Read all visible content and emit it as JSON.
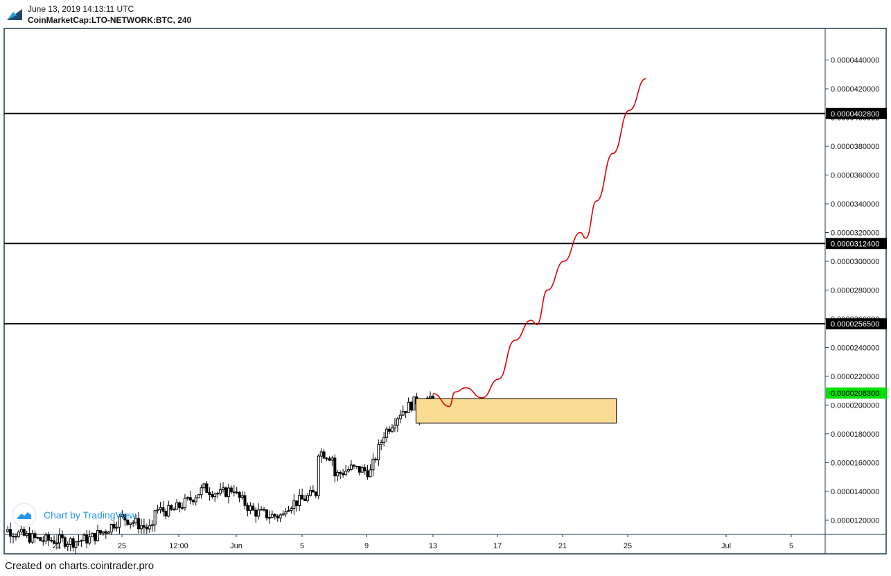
{
  "header": {
    "timestamp": "June 13, 2019 14:13:11 UTC",
    "symbol": "CoinMarketCap:LTO-NETWORK:BTC, 240"
  },
  "watermark": {
    "text": "Chart by TradingView"
  },
  "footer": {
    "text": "Created on charts.cointrader.pro"
  },
  "colors": {
    "frame": "#1a3a4a",
    "candle": "#000000",
    "projection": "#e00000",
    "zone_fill": "#f9dc92",
    "current_price": "#00e000",
    "level_label_bg": "#000000"
  },
  "chart_data": {
    "type": "candlestick",
    "ylim": [
      1.1e-05,
      4.62e-05
    ],
    "y_ticks": [
      "0.0000120000",
      "0.0000140000",
      "0.0000160000",
      "0.0000180000",
      "0.0000200000",
      "0.0000220000",
      "0.0000240000",
      "0.0000260000",
      "0.0000280000",
      "0.0000300000",
      "0.0000320000",
      "0.0000340000",
      "0.0000360000",
      "0.0000380000",
      "0.0000400000",
      "0.0000420000",
      "0.0000440000"
    ],
    "x_ticks": [
      "21",
      "25",
      "12:00",
      "Jun",
      "5",
      "9",
      "13",
      "17",
      "21",
      "25",
      "Jul",
      "5"
    ],
    "horizontal_levels": [
      {
        "price": 4.028e-05,
        "label": "0.0000402800"
      },
      {
        "price": 3.124e-05,
        "label": "0.0000312400"
      },
      {
        "price": 2.565e-05,
        "label": "0.0000256500"
      }
    ],
    "current_price": {
      "price": 2.083e-05,
      "label": "0.0000208300"
    },
    "zone": {
      "start": "Jun 12",
      "end": "Jun 24",
      "top": 2.045e-05,
      "bottom": 1.875e-05
    },
    "projection_path": [
      [
        "Jun 13",
        2.08e-05
      ],
      [
        "Jun 14",
        1.99e-05
      ],
      [
        "Jun 14",
        2.09e-05
      ],
      [
        "Jun 15",
        2.12e-05
      ],
      [
        "Jun 16",
        2.05e-05
      ],
      [
        "Jun 17",
        2.18e-05
      ],
      [
        "Jun 18",
        2.45e-05
      ],
      [
        "Jun 19",
        2.59e-05
      ],
      [
        "Jun 19",
        2.56e-05
      ],
      [
        "Jun 20",
        2.8e-05
      ],
      [
        "Jun 21",
        3e-05
      ],
      [
        "Jun 22",
        3.2e-05
      ],
      [
        "Jun 22",
        3.16e-05
      ],
      [
        "Jun 23",
        3.42e-05
      ],
      [
        "Jun 24",
        3.75e-05
      ],
      [
        "Jun 25",
        4.05e-05
      ],
      [
        "Jun 26",
        4.27e-05
      ]
    ],
    "price_series": [
      [
        "May 17",
        1.2e-05
      ],
      [
        "May 18",
        1.13e-05
      ],
      [
        "May 19",
        1.09e-05
      ],
      [
        "May 20",
        1.06e-05
      ],
      [
        "May 21",
        1.06e-05
      ],
      [
        "May 22",
        1.05e-05
      ],
      [
        "May 23",
        1.07e-05
      ],
      [
        "May 24",
        1.13e-05
      ],
      [
        "May 25",
        1.22e-05
      ],
      [
        "May 26",
        1.17e-05
      ],
      [
        "May 27",
        1.12e-05
      ],
      [
        "May 27",
        1.27e-05
      ],
      [
        "May 28",
        1.26e-05
      ],
      [
        "May 29",
        1.33e-05
      ],
      [
        "May 30",
        1.42e-05
      ],
      [
        "May 31",
        1.38e-05
      ],
      [
        "Jun 1",
        1.43e-05
      ],
      [
        "Jun 1",
        1.37e-05
      ],
      [
        "Jun 2",
        1.26e-05
      ],
      [
        "Jun 3",
        1.23e-05
      ],
      [
        "Jun 4",
        1.23e-05
      ],
      [
        "Jun 4",
        1.3e-05
      ],
      [
        "Jun 5",
        1.34e-05
      ],
      [
        "Jun 6",
        1.4e-05
      ],
      [
        "Jun 6",
        1.68e-05
      ],
      [
        "Jun 7",
        1.63e-05
      ],
      [
        "Jun 7",
        1.51e-05
      ],
      [
        "Jun 8",
        1.56e-05
      ],
      [
        "Jun 9",
        1.54e-05
      ],
      [
        "Jun 9",
        1.48e-05
      ],
      [
        "Jun 10",
        1.8e-05
      ],
      [
        "Jun 11",
        1.95e-05
      ],
      [
        "Jun 12",
        2.03e-05
      ],
      [
        "Jun 12",
        1.88e-05
      ],
      [
        "Jun 13",
        2.08e-05
      ]
    ]
  }
}
